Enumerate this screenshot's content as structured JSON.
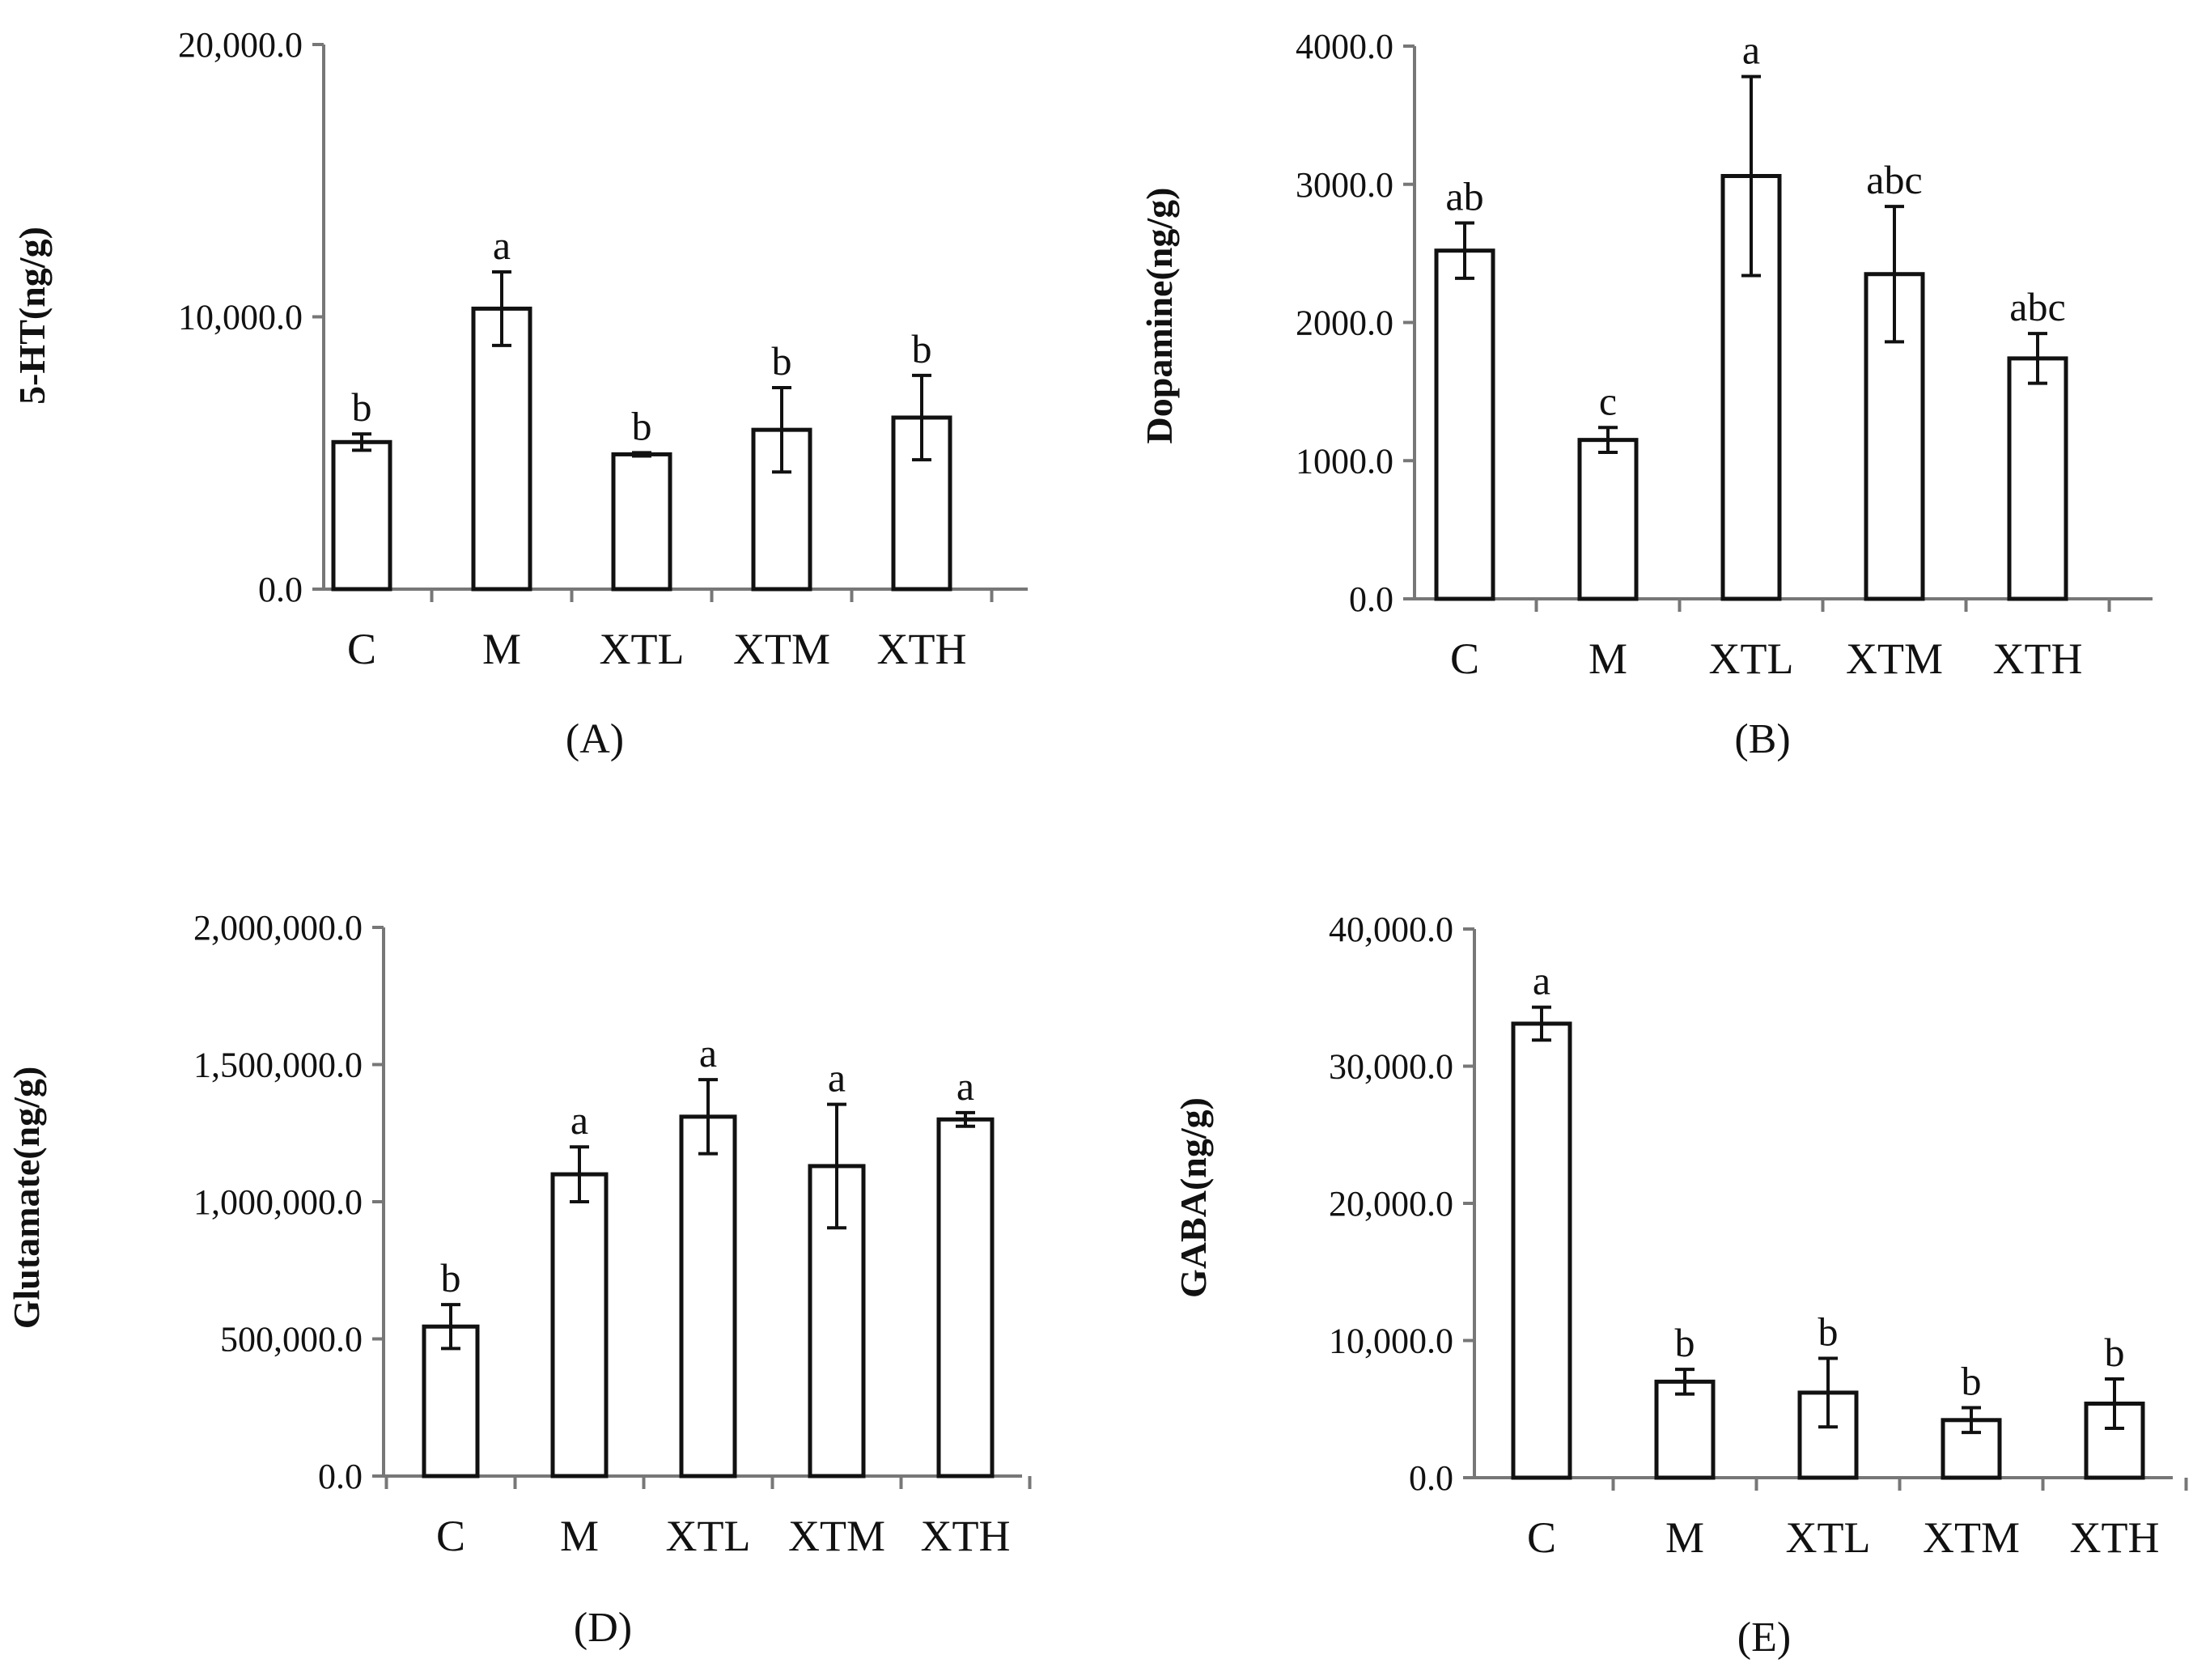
{
  "chart_data": [
    {
      "type": "bar",
      "panel_label": "(A)",
      "title": "",
      "xlabel": "",
      "ylabel": "5-HT(ng/g)",
      "ylim": [
        0,
        20000
      ],
      "yticks": [
        "0.0",
        "10,000.0",
        "20,000.0"
      ],
      "categories": [
        "C",
        "M",
        "XTL",
        "XTM",
        "XTH"
      ],
      "values": [
        5400,
        10300,
        4950,
        5850,
        6300
      ],
      "errors": [
        300,
        1350,
        60,
        1550,
        1550
      ],
      "letters": [
        "b",
        "a",
        "b",
        "b",
        "b"
      ]
    },
    {
      "type": "bar",
      "panel_label": "(B)",
      "title": "",
      "xlabel": "",
      "ylabel": "Dopamine(ng/g)",
      "ylim": [
        0,
        4000
      ],
      "yticks": [
        "0.0",
        "1000.0",
        "2000.0",
        "3000.0",
        "4000.0"
      ],
      "categories": [
        "C",
        "M",
        "XTL",
        "XTM",
        "XTH"
      ],
      "values": [
        2520,
        1150,
        3060,
        2350,
        1740
      ],
      "errors": [
        200,
        90,
        720,
        490,
        180
      ],
      "letters": [
        "ab",
        "c",
        "a",
        "abc",
        "abc"
      ]
    },
    {
      "type": "bar",
      "panel_label": "(D)",
      "title": "",
      "xlabel": "",
      "ylabel": "Glutamate(ng/g)",
      "ylim": [
        0,
        2000000
      ],
      "yticks": [
        "0.0",
        "500,000.0",
        "1,000,000.0",
        "1,500,000.0",
        "2,000,000.0"
      ],
      "categories": [
        "C",
        "M",
        "XTL",
        "XTM",
        "XTH"
      ],
      "values": [
        545000,
        1100000,
        1310000,
        1130000,
        1300000
      ],
      "errors": [
        80000,
        100000,
        135000,
        225000,
        25000
      ],
      "letters": [
        "b",
        "a",
        "a",
        "a",
        "a"
      ]
    },
    {
      "type": "bar",
      "panel_label": "(E)",
      "title": "",
      "xlabel": "",
      "ylabel": "GABA(ng/g)",
      "ylim": [
        0,
        40000
      ],
      "yticks": [
        "0.0",
        "10,000.0",
        "20,000.0",
        "30,000.0",
        "40,000.0"
      ],
      "categories": [
        "C",
        "M",
        "XTL",
        "XTM",
        "XTH"
      ],
      "values": [
        33100,
        7000,
        6200,
        4200,
        5400
      ],
      "errors": [
        1200,
        900,
        2500,
        900,
        1800
      ],
      "letters": [
        "a",
        "b",
        "b",
        "b",
        "b"
      ]
    }
  ]
}
